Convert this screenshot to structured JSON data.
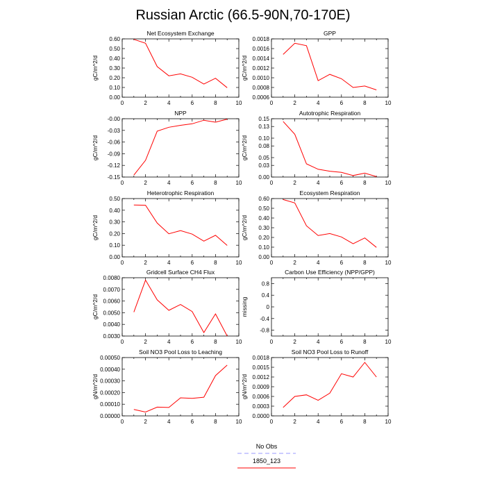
{
  "title": "Russian Arctic (66.5-90N,70-170E)",
  "line_color": "#ff0000",
  "legend": {
    "items": [
      {
        "label": "No Obs",
        "color": "#9999ff",
        "style": "dashed"
      },
      {
        "label": "1850_123",
        "color": "#ff0000",
        "style": "solid"
      }
    ]
  },
  "chart_data": [
    {
      "type": "line",
      "title": "Net Ecosystem Exchange",
      "ylabel": "gC/m^2/d",
      "xlim": [
        0,
        10
      ],
      "xticks": [
        0,
        2,
        4,
        6,
        8,
        10
      ],
      "ylim": [
        0,
        0.6
      ],
      "yticks": [
        "0.00",
        "0.10",
        "0.20",
        "0.30",
        "0.40",
        "0.50",
        "0.60"
      ],
      "x": [
        1,
        2,
        3,
        4,
        5,
        6,
        7,
        8,
        9
      ],
      "values": [
        0.595,
        0.555,
        0.315,
        0.22,
        0.24,
        0.205,
        0.135,
        0.195,
        0.098
      ]
    },
    {
      "type": "line",
      "title": "GPP",
      "ylabel": "gC/m^2/d",
      "xlim": [
        0,
        10
      ],
      "xticks": [
        0,
        2,
        4,
        6,
        8,
        10
      ],
      "ylim": [
        0.0006,
        0.0018
      ],
      "yticks": [
        "0.0006",
        "0.0008",
        "0.0010",
        "0.0012",
        "0.0014",
        "0.0016",
        "0.0018"
      ],
      "x": [
        1,
        2,
        3,
        4,
        5,
        6,
        7,
        8,
        9
      ],
      "values": [
        0.00148,
        0.00171,
        0.00166,
        0.00094,
        0.00107,
        0.00098,
        0.0008,
        0.00083,
        0.00075
      ]
    },
    {
      "type": "line",
      "title": "NPP",
      "ylabel": "gC/m^2/d",
      "xlim": [
        0,
        10
      ],
      "xticks": [
        0,
        2,
        4,
        6,
        8,
        10
      ],
      "ylim": [
        -0.15,
        0
      ],
      "yticks": [
        "-0.15",
        "-0.12",
        "-0.09",
        "-0.06",
        "-0.03",
        "-0.00"
      ],
      "x": [
        1,
        2,
        3,
        4,
        5,
        6,
        7,
        8,
        9
      ],
      "values": [
        -0.145,
        -0.107,
        -0.032,
        -0.022,
        -0.017,
        -0.013,
        -0.004,
        -0.009,
        -0.001
      ]
    },
    {
      "type": "line",
      "title": "Autotrophic Respiration",
      "ylabel": "gC/m^2/d",
      "xlim": [
        0,
        10
      ],
      "xticks": [
        0,
        2,
        4,
        6,
        8,
        10
      ],
      "ylim": [
        0,
        0.15
      ],
      "yticks": [
        "0.00",
        "0.03",
        "0.05",
        "0.08",
        "0.10",
        "0.13",
        "0.15"
      ],
      "x": [
        1,
        2,
        3,
        4,
        5,
        6,
        7,
        8,
        9
      ],
      "values": [
        0.143,
        0.11,
        0.034,
        0.02,
        0.015,
        0.012,
        0.004,
        0.01,
        0.001
      ]
    },
    {
      "type": "line",
      "title": "Heterotrophic Respiration",
      "ylabel": "gC/m^2/d",
      "xlim": [
        0,
        10
      ],
      "xticks": [
        0,
        2,
        4,
        6,
        8,
        10
      ],
      "ylim": [
        0,
        0.5
      ],
      "yticks": [
        "0.00",
        "0.10",
        "0.20",
        "0.30",
        "0.40",
        "0.50"
      ],
      "x": [
        1,
        2,
        3,
        4,
        5,
        6,
        7,
        8,
        9
      ],
      "values": [
        0.445,
        0.443,
        0.29,
        0.198,
        0.225,
        0.195,
        0.135,
        0.185,
        0.098
      ]
    },
    {
      "type": "line",
      "title": "Ecosystem Respiration",
      "ylabel": "gC/m^2/d",
      "xlim": [
        0,
        10
      ],
      "xticks": [
        0,
        2,
        4,
        6,
        8,
        10
      ],
      "ylim": [
        0,
        0.6
      ],
      "yticks": [
        "0.00",
        "0.10",
        "0.20",
        "0.30",
        "0.40",
        "0.50",
        "0.60"
      ],
      "x": [
        1,
        2,
        3,
        4,
        5,
        6,
        7,
        8,
        9
      ],
      "values": [
        0.59,
        0.555,
        0.32,
        0.22,
        0.24,
        0.205,
        0.135,
        0.195,
        0.098
      ]
    },
    {
      "type": "line",
      "title": "Gridcell Surface CH4 Flux",
      "ylabel": "gC/m^2/d",
      "xlim": [
        0,
        10
      ],
      "xticks": [
        0,
        2,
        4,
        6,
        8,
        10
      ],
      "ylim": [
        0.003,
        0.008
      ],
      "yticks": [
        "0.0030",
        "0.0040",
        "0.0050",
        "0.0060",
        "0.0070",
        "0.0080"
      ],
      "x": [
        1,
        2,
        3,
        4,
        5,
        6,
        7,
        8,
        9
      ],
      "values": [
        0.00505,
        0.0078,
        0.0061,
        0.0052,
        0.0057,
        0.0051,
        0.0033,
        0.0049,
        0.003
      ]
    },
    {
      "type": "line",
      "title": "Carbon Use Efficiency (NPP/GPP)",
      "ylabel": "missing",
      "xlim": [
        0,
        10
      ],
      "xticks": [
        0,
        2,
        4,
        6,
        8,
        10
      ],
      "ylim": [
        -1,
        1
      ],
      "yticks": [
        "-0.8",
        "-0.4",
        "0",
        "0.4",
        "0.8"
      ],
      "ytick_values": [
        -0.8,
        -0.4,
        0,
        0.4,
        0.8
      ],
      "x": [],
      "values": []
    },
    {
      "type": "line",
      "title": "Soil NO3 Pool Loss to Leaching",
      "ylabel": "gN/m^2/d",
      "xlim": [
        0,
        10
      ],
      "xticks": [
        0,
        2,
        4,
        6,
        8,
        10
      ],
      "ylim": [
        0,
        0.0005
      ],
      "yticks": [
        "0.00000",
        "0.00010",
        "0.00020",
        "0.00030",
        "0.00040",
        "0.00050"
      ],
      "x": [
        1,
        2,
        3,
        4,
        5,
        6,
        7,
        8,
        9
      ],
      "values": [
        5.5e-05,
        3.3e-05,
        7.5e-05,
        7.2e-05,
        0.000155,
        0.00015,
        0.00016,
        0.000345,
        0.000435
      ]
    },
    {
      "type": "line",
      "title": "Soil NO3 Pool Loss to Runoff",
      "ylabel": "gN/m^2/d",
      "xlim": [
        0,
        10
      ],
      "xticks": [
        0,
        2,
        4,
        6,
        8,
        10
      ],
      "ylim": [
        0,
        0.0018
      ],
      "yticks": [
        "0.0000",
        "0.0003",
        "0.0006",
        "0.0009",
        "0.0012",
        "0.0015",
        "0.0018"
      ],
      "x": [
        1,
        2,
        3,
        4,
        5,
        6,
        7,
        8,
        9
      ],
      "values": [
        0.00026,
        0.0006,
        0.00065,
        0.00048,
        0.0007,
        0.0013,
        0.0012,
        0.00165,
        0.0012
      ]
    }
  ]
}
